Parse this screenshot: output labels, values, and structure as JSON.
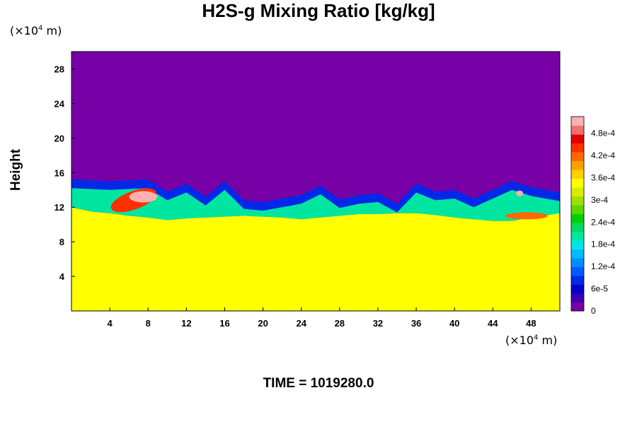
{
  "chart_data": {
    "type": "heatmap",
    "title": "H2S-g Mixing Ratio [kg/kg]",
    "ylabel": "Height",
    "x_unit": {
      "prefix": "(×10",
      "exp": "4",
      "suffix": " m)"
    },
    "y_unit": {
      "prefix": "(×10",
      "exp": "4",
      "suffix": " m)"
    },
    "xlim": [
      0,
      51
    ],
    "ylim": [
      0,
      30
    ],
    "x_ticks": [
      4,
      8,
      12,
      16,
      20,
      24,
      28,
      32,
      36,
      40,
      44,
      48
    ],
    "y_ticks": [
      4,
      8,
      12,
      16,
      20,
      24,
      28
    ],
    "colorbar": {
      "min": 0,
      "max": 0.000525,
      "labels": [
        {
          "value": 0,
          "text": "0"
        },
        {
          "value": 6e-05,
          "text": "6e-5"
        },
        {
          "value": 0.00012,
          "text": "1.2e-4"
        },
        {
          "value": 0.00018,
          "text": "1.8e-4"
        },
        {
          "value": 0.00024,
          "text": "2.4e-4"
        },
        {
          "value": 0.0003,
          "text": "3e-4"
        },
        {
          "value": 0.00036,
          "text": "3.6e-4"
        },
        {
          "value": 0.00042,
          "text": "4.2e-4"
        },
        {
          "value": 0.00048,
          "text": "4.8e-4"
        }
      ],
      "colors": [
        "#7700a6",
        "#3b00b0",
        "#0000c8",
        "#0028e8",
        "#005aff",
        "#008cff",
        "#00bcff",
        "#00e6e6",
        "#00e6a0",
        "#00d860",
        "#00d000",
        "#5ad800",
        "#a0e000",
        "#d8ec00",
        "#ffff00",
        "#ffd000",
        "#ffa000",
        "#ff6800",
        "#ff3000",
        "#e00000",
        "#f07070",
        "#ffb0b0"
      ]
    },
    "field": {
      "background_value": 0.000345,
      "upper_value": 0,
      "boundary_height": [
        [
          0,
          12.0
        ],
        [
          2,
          11.5
        ],
        [
          4,
          11.3
        ],
        [
          6,
          11.0
        ],
        [
          8,
          10.8
        ],
        [
          10,
          10.5
        ],
        [
          12,
          10.7
        ],
        [
          14,
          10.8
        ],
        [
          16,
          10.9
        ],
        [
          18,
          11.0
        ],
        [
          20,
          10.9
        ],
        [
          22,
          10.8
        ],
        [
          24,
          10.6
        ],
        [
          26,
          10.8
        ],
        [
          28,
          11.0
        ],
        [
          30,
          11.2
        ],
        [
          32,
          11.2
        ],
        [
          34,
          11.3
        ],
        [
          36,
          11.3
        ],
        [
          38,
          11.1
        ],
        [
          40,
          10.8
        ],
        [
          42,
          10.6
        ],
        [
          44,
          10.4
        ],
        [
          46,
          10.4
        ],
        [
          48,
          10.8
        ],
        [
          51,
          11.3
        ]
      ],
      "mixing_top": [
        [
          0,
          15.2
        ],
        [
          4,
          15.0
        ],
        [
          8,
          15.2
        ],
        [
          10,
          13.8
        ],
        [
          12,
          14.7
        ],
        [
          14,
          13.2
        ],
        [
          16,
          15.0
        ],
        [
          18,
          12.8
        ],
        [
          20,
          12.6
        ],
        [
          22,
          13.0
        ],
        [
          24,
          13.4
        ],
        [
          26,
          14.5
        ],
        [
          28,
          12.9
        ],
        [
          30,
          13.4
        ],
        [
          32,
          13.6
        ],
        [
          34,
          12.4
        ],
        [
          36,
          14.7
        ],
        [
          38,
          13.8
        ],
        [
          40,
          14.0
        ],
        [
          42,
          13.0
        ],
        [
          44,
          14.0
        ],
        [
          46,
          15.0
        ],
        [
          48,
          14.3
        ],
        [
          51,
          13.7
        ]
      ]
    }
  },
  "time_label": "TIME = 1019280.0"
}
